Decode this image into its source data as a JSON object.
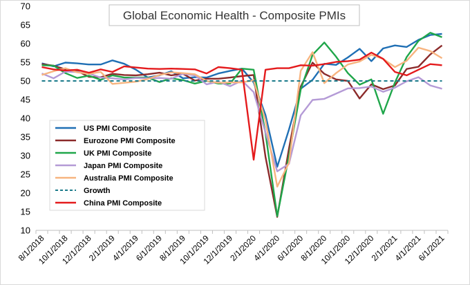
{
  "chart_data": {
    "type": "line",
    "title": "Global Economic Health - Composite PMIs",
    "ylim": [
      10,
      70
    ],
    "yticks": [
      10,
      15,
      20,
      25,
      30,
      35,
      40,
      45,
      50,
      55,
      60,
      65,
      70
    ],
    "grid": false,
    "legend_position": "lower-left",
    "x": [
      "8/1/2018",
      "9/1/2018",
      "10/1/2018",
      "11/1/2018",
      "12/1/2018",
      "1/1/2019",
      "2/1/2019",
      "3/1/2019",
      "4/1/2019",
      "5/1/2019",
      "6/1/2019",
      "7/1/2019",
      "8/1/2019",
      "9/1/2019",
      "10/1/2019",
      "11/1/2019",
      "12/1/2019",
      "1/1/2020",
      "2/1/2020",
      "3/1/2020",
      "4/1/2020",
      "5/1/2020",
      "6/1/2020",
      "7/1/2020",
      "8/1/2020",
      "9/1/2020",
      "10/1/2020",
      "11/1/2020",
      "12/1/2020",
      "1/1/2021",
      "2/1/2021",
      "3/1/2021",
      "4/1/2021",
      "5/1/2021",
      "6/1/2021"
    ],
    "x_tick_labels": [
      "8/1/2018",
      "10/1/2018",
      "12/1/2018",
      "2/1/2019",
      "4/1/2019",
      "6/1/2019",
      "8/1/2019",
      "10/1/2019",
      "12/1/2019",
      "2/1/2020",
      "4/1/2020",
      "6/1/2020",
      "8/1/2020",
      "10/1/2020",
      "12/1/2020",
      "2/1/2021",
      "4/1/2021",
      "6/1/2021"
    ],
    "series": [
      {
        "name": "US PMI Composite",
        "color": "#1f6fb4",
        "dash": "",
        "values": [
          54.7,
          53.9,
          54.9,
          54.7,
          54.4,
          54.4,
          55.5,
          54.6,
          53.0,
          50.9,
          51.5,
          52.6,
          50.7,
          51.0,
          50.9,
          52.0,
          52.7,
          53.3,
          49.6,
          40.9,
          27.0,
          37.0,
          47.9,
          50.3,
          54.6,
          54.3,
          56.3,
          58.6,
          55.3,
          58.7,
          59.5,
          59.1,
          61.0,
          62.3,
          62.6
        ]
      },
      {
        "name": "Eurozone PMI Composite",
        "color": "#8b2a2a",
        "dash": "",
        "values": [
          54.5,
          54.1,
          53.1,
          52.7,
          51.1,
          51.0,
          51.9,
          51.6,
          51.5,
          51.8,
          52.2,
          51.5,
          51.9,
          50.1,
          50.6,
          50.6,
          50.9,
          51.3,
          51.6,
          29.7,
          13.6,
          31.9,
          48.5,
          54.9,
          51.9,
          50.4,
          50.0,
          45.3,
          49.1,
          47.8,
          48.8,
          53.2,
          53.8,
          57.1,
          59.5
        ]
      },
      {
        "name": "UK PMI Composite",
        "color": "#1fa64a",
        "dash": "",
        "values": [
          54.2,
          54.1,
          52.1,
          50.8,
          51.4,
          50.3,
          51.5,
          50.9,
          50.9,
          50.9,
          49.7,
          50.7,
          50.2,
          49.3,
          50.0,
          49.3,
          49.3,
          53.3,
          53.0,
          36.0,
          13.8,
          30.0,
          47.7,
          57.0,
          60.3,
          56.5,
          52.1,
          49.0,
          50.4,
          41.2,
          49.6,
          56.4,
          60.7,
          62.9,
          61.7
        ]
      },
      {
        "name": "Japan PMI Composite",
        "color": "#b49ad6",
        "dash": "",
        "values": [
          52.0,
          50.7,
          52.5,
          52.4,
          52.0,
          50.9,
          50.7,
          50.4,
          50.8,
          50.7,
          50.8,
          50.6,
          51.9,
          51.5,
          49.1,
          49.8,
          48.6,
          50.1,
          47.0,
          36.2,
          25.8,
          27.8,
          40.8,
          44.9,
          45.2,
          46.6,
          48.0,
          48.1,
          48.5,
          47.1,
          48.2,
          49.9,
          51.0,
          48.8,
          47.9
        ]
      },
      {
        "name": "Australia PMI Composite",
        "color": "#f7b47f",
        "dash": "",
        "values": [
          51.6,
          52.6,
          53.4,
          52.3,
          51.9,
          52.4,
          49.2,
          49.5,
          49.8,
          50.5,
          51.6,
          52.3,
          52.1,
          51.8,
          50.0,
          49.5,
          49.6,
          49.6,
          50.2,
          39.4,
          21.7,
          28.1,
          52.7,
          57.7,
          49.4,
          52.1,
          54.4,
          55.2,
          57.0,
          55.9,
          53.7,
          55.4,
          58.9,
          58.0,
          56.1
        ]
      },
      {
        "name": "Growth",
        "color": "#1a7a8a",
        "dash": "5,4",
        "values": [
          50,
          50,
          50,
          50,
          50,
          50,
          50,
          50,
          50,
          50,
          50,
          50,
          50,
          50,
          50,
          50,
          50,
          50,
          50,
          50,
          50,
          50,
          50,
          50,
          50,
          50,
          50,
          50,
          50,
          50,
          50,
          50,
          50,
          50,
          50
        ]
      },
      {
        "name": "China PMI Composite",
        "color": "#e41a1c",
        "dash": "",
        "values": [
          53.7,
          53.1,
          52.8,
          53.0,
          52.2,
          53.1,
          52.4,
          53.9,
          53.6,
          53.3,
          53.2,
          53.3,
          53.2,
          53.1,
          52.0,
          53.7,
          53.4,
          53.0,
          28.9,
          53.0,
          53.4,
          53.4,
          54.2,
          54.1,
          54.5,
          55.1,
          55.3,
          55.7,
          57.6,
          55.9,
          52.4,
          51.5,
          53.0,
          54.5,
          54.2
        ]
      }
    ]
  }
}
